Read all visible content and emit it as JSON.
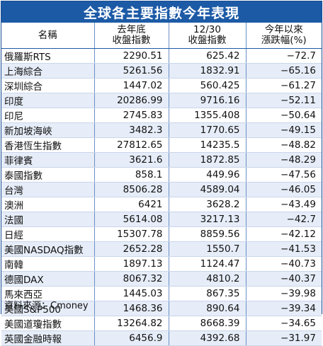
{
  "title": "全球各主要指數今年表現",
  "headers": {
    "name": "名稱",
    "prev_close_line1": "去年底",
    "prev_close_line2": "收盤指數",
    "close_line1": "12/30",
    "close_line2": "收盤指數",
    "change_line1": "今年以來",
    "change_line2": "漲跌幅(%)"
  },
  "rows": [
    {
      "name": "俄羅斯RTS",
      "prev": "2290.51",
      "close": "625.42",
      "change": "−72.7"
    },
    {
      "name": "上海綜合",
      "prev": "5261.56",
      "close": "1832.91",
      "change": "−65.16"
    },
    {
      "name": "深圳綜合",
      "prev": "1447.02",
      "close": "560.425",
      "change": "−61.27"
    },
    {
      "name": "印度",
      "prev": "20286.99",
      "close": "9716.16",
      "change": "−52.11"
    },
    {
      "name": "印尼",
      "prev": "2745.83",
      "close": "1355.408",
      "change": "−50.64"
    },
    {
      "name": "新加坡海峽",
      "prev": "3482.3",
      "close": "1770.65",
      "change": "−49.15"
    },
    {
      "name": "香港恆生指數",
      "prev": "27812.65",
      "close": "14235.5",
      "change": "−48.82"
    },
    {
      "name": "菲律賓",
      "prev": "3621.6",
      "close": "1872.85",
      "change": "−48.29"
    },
    {
      "name": "泰國指數",
      "prev": "858.1",
      "close": "449.96",
      "change": "−47.56"
    },
    {
      "name": "台灣",
      "prev": "8506.28",
      "close": "4589.04",
      "change": "−46.05"
    },
    {
      "name": "澳洲",
      "prev": "6421",
      "close": "3628.2",
      "change": "−43.49"
    },
    {
      "name": "法國",
      "prev": "5614.08",
      "close": "3217.13",
      "change": "−42.7"
    },
    {
      "name": "日經",
      "prev": "15307.78",
      "close": "8859.56",
      "change": "−42.12"
    },
    {
      "name": "美國NASDAQ指數",
      "prev": "2652.28",
      "close": "1550.7",
      "change": "−41.53"
    },
    {
      "name": "南韓",
      "prev": "1897.13",
      "close": "1124.47",
      "change": "−40.73"
    },
    {
      "name": "德國DAX",
      "prev": "8067.32",
      "close": "4810.2",
      "change": "−40.37"
    },
    {
      "name": "馬來西亞",
      "prev": "1445.03",
      "close": "867.35",
      "change": "−39.98"
    },
    {
      "name": "美國S&P500",
      "prev": "1468.36",
      "close": "890.64",
      "change": "−39.34"
    },
    {
      "name": "美國道瓊指數",
      "prev": "13264.82",
      "close": "8668.39",
      "change": "−34.65"
    },
    {
      "name": "英國金融時報",
      "prev": "6456.9",
      "close": "4392.68",
      "change": "−31.97"
    }
  ],
  "source": "資料來源：Cmoney",
  "colors": {
    "header_blue": "#1c5aa6",
    "stripe": "#e6edf8"
  }
}
